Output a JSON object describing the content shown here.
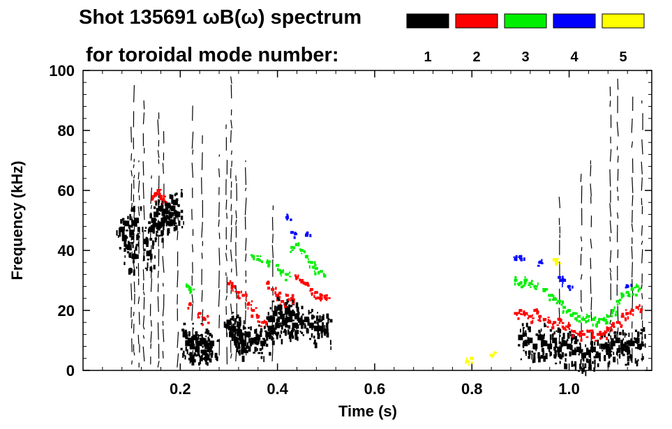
{
  "header": {
    "title_line1": "Shot 135691 ωB(ω) spectrum",
    "title_line2": "for toroidal mode number:"
  },
  "legend": [
    {
      "label": "1",
      "color": "#000000"
    },
    {
      "label": "2",
      "color": "#ff0000"
    },
    {
      "label": "3",
      "color": "#00ee00"
    },
    {
      "label": "4",
      "color": "#0000ff"
    },
    {
      "label": "5",
      "color": "#ffff00"
    }
  ],
  "chart_data": {
    "type": "scatter",
    "title": "Shot 135691 ωB(ω) spectrum for toroidal mode number",
    "xlabel": "Time (s)",
    "ylabel": "Frequency (kHz)",
    "xlim": [
      0.0,
      1.17
    ],
    "ylim": [
      0,
      100
    ],
    "xticks": [
      {
        "value": 0.2,
        "label": "0.2"
      },
      {
        "value": 0.4,
        "label": "0.4"
      },
      {
        "value": 0.6,
        "label": "0.6"
      },
      {
        "value": 0.8,
        "label": "0.8"
      },
      {
        "value": 1.0,
        "label": "1.0"
      }
    ],
    "yticks": [
      {
        "value": 0,
        "label": "0"
      },
      {
        "value": 20,
        "label": "20"
      },
      {
        "value": 40,
        "label": "40"
      },
      {
        "value": 60,
        "label": "60"
      },
      {
        "value": 80,
        "label": "80"
      },
      {
        "value": 100,
        "label": "100"
      }
    ],
    "series": [
      {
        "name": "n=1",
        "color": "#000000",
        "points": [
          [
            0.08,
            47
          ],
          [
            0.085,
            44
          ],
          [
            0.09,
            49
          ],
          [
            0.095,
            41
          ],
          [
            0.1,
            46
          ],
          [
            0.105,
            38
          ],
          [
            0.11,
            50
          ],
          [
            0.13,
            43
          ],
          [
            0.135,
            39
          ],
          [
            0.14,
            47
          ],
          [
            0.145,
            50
          ],
          [
            0.15,
            52
          ],
          [
            0.155,
            48
          ],
          [
            0.16,
            54
          ],
          [
            0.165,
            50
          ],
          [
            0.17,
            53
          ],
          [
            0.175,
            55
          ],
          [
            0.18,
            49
          ],
          [
            0.185,
            54
          ],
          [
            0.19,
            56
          ],
          [
            0.195,
            52
          ],
          [
            0.21,
            12
          ],
          [
            0.215,
            9
          ],
          [
            0.22,
            10
          ],
          [
            0.225,
            8
          ],
          [
            0.23,
            11
          ],
          [
            0.235,
            7
          ],
          [
            0.24,
            9
          ],
          [
            0.245,
            10
          ],
          [
            0.25,
            6
          ],
          [
            0.255,
            8
          ],
          [
            0.26,
            7
          ],
          [
            0.265,
            9
          ],
          [
            0.3,
            16
          ],
          [
            0.305,
            12
          ],
          [
            0.31,
            14
          ],
          [
            0.315,
            10
          ],
          [
            0.32,
            13
          ],
          [
            0.325,
            11
          ],
          [
            0.33,
            9
          ],
          [
            0.34,
            12
          ],
          [
            0.35,
            10
          ],
          [
            0.36,
            11
          ],
          [
            0.37,
            9
          ],
          [
            0.38,
            12
          ],
          [
            0.385,
            14
          ],
          [
            0.39,
            17
          ],
          [
            0.395,
            19
          ],
          [
            0.4,
            15
          ],
          [
            0.405,
            21
          ],
          [
            0.41,
            18
          ],
          [
            0.415,
            16
          ],
          [
            0.42,
            20
          ],
          [
            0.425,
            17
          ],
          [
            0.43,
            19
          ],
          [
            0.435,
            15
          ],
          [
            0.44,
            18
          ],
          [
            0.45,
            16
          ],
          [
            0.46,
            17
          ],
          [
            0.47,
            15
          ],
          [
            0.48,
            14
          ],
          [
            0.49,
            14
          ],
          [
            0.5,
            13
          ],
          [
            0.9,
            11
          ],
          [
            0.91,
            9
          ],
          [
            0.92,
            10
          ],
          [
            0.93,
            8
          ],
          [
            0.94,
            11
          ],
          [
            0.95,
            9
          ],
          [
            0.96,
            8
          ],
          [
            0.97,
            10
          ],
          [
            0.98,
            7
          ],
          [
            0.99,
            9
          ],
          [
            1.0,
            8
          ],
          [
            1.01,
            6
          ],
          [
            1.02,
            7
          ],
          [
            1.03,
            5
          ],
          [
            1.04,
            6
          ],
          [
            1.05,
            7
          ],
          [
            1.06,
            5
          ],
          [
            1.07,
            8
          ],
          [
            1.08,
            7
          ],
          [
            1.09,
            9
          ],
          [
            1.1,
            10
          ],
          [
            1.11,
            8
          ],
          [
            1.12,
            7
          ],
          [
            1.13,
            9
          ],
          [
            1.14,
            10
          ],
          [
            1.145,
            8
          ]
        ]
      },
      {
        "name": "n=2",
        "color": "#ff0000",
        "points": [
          [
            0.145,
            58
          ],
          [
            0.15,
            59
          ],
          [
            0.155,
            60
          ],
          [
            0.16,
            58
          ],
          [
            0.165,
            57
          ],
          [
            0.22,
            22
          ],
          [
            0.24,
            19
          ],
          [
            0.25,
            17
          ],
          [
            0.3,
            29
          ],
          [
            0.31,
            28
          ],
          [
            0.32,
            26
          ],
          [
            0.33,
            25
          ],
          [
            0.34,
            22
          ],
          [
            0.35,
            20
          ],
          [
            0.36,
            18
          ],
          [
            0.37,
            16
          ],
          [
            0.38,
            29
          ],
          [
            0.39,
            27
          ],
          [
            0.4,
            25
          ],
          [
            0.41,
            23
          ],
          [
            0.42,
            25
          ],
          [
            0.43,
            24
          ],
          [
            0.44,
            31
          ],
          [
            0.45,
            30
          ],
          [
            0.46,
            29
          ],
          [
            0.47,
            27
          ],
          [
            0.48,
            26
          ],
          [
            0.49,
            25
          ],
          [
            0.5,
            24
          ],
          [
            0.89,
            19
          ],
          [
            0.9,
            20
          ],
          [
            0.91,
            19
          ],
          [
            0.92,
            18
          ],
          [
            0.93,
            20
          ],
          [
            0.94,
            18
          ],
          [
            0.95,
            17
          ],
          [
            0.96,
            16
          ],
          [
            0.97,
            16
          ],
          [
            0.98,
            17
          ],
          [
            0.99,
            14
          ],
          [
            1.0,
            15
          ],
          [
            1.01,
            13
          ],
          [
            1.02,
            12
          ],
          [
            1.03,
            12
          ],
          [
            1.04,
            13
          ],
          [
            1.05,
            11
          ],
          [
            1.06,
            12
          ],
          [
            1.07,
            12
          ],
          [
            1.08,
            14
          ],
          [
            1.09,
            15
          ],
          [
            1.1,
            16
          ],
          [
            1.11,
            18
          ],
          [
            1.12,
            19
          ],
          [
            1.13,
            20
          ],
          [
            1.14,
            21
          ]
        ]
      },
      {
        "name": "n=3",
        "color": "#00ee00",
        "points": [
          [
            0.215,
            28
          ],
          [
            0.22,
            27
          ],
          [
            0.35,
            38
          ],
          [
            0.36,
            37
          ],
          [
            0.38,
            36
          ],
          [
            0.4,
            35
          ],
          [
            0.41,
            33
          ],
          [
            0.42,
            32
          ],
          [
            0.43,
            41
          ],
          [
            0.44,
            42
          ],
          [
            0.45,
            40
          ],
          [
            0.46,
            38
          ],
          [
            0.47,
            36
          ],
          [
            0.48,
            34
          ],
          [
            0.49,
            33
          ],
          [
            0.89,
            30
          ],
          [
            0.9,
            29
          ],
          [
            0.91,
            30
          ],
          [
            0.92,
            29
          ],
          [
            0.93,
            28
          ],
          [
            0.95,
            27
          ],
          [
            0.96,
            25
          ],
          [
            0.97,
            24
          ],
          [
            0.98,
            23
          ],
          [
            0.99,
            21
          ],
          [
            1.0,
            20
          ],
          [
            1.01,
            19
          ],
          [
            1.02,
            18
          ],
          [
            1.03,
            17
          ],
          [
            1.04,
            18
          ],
          [
            1.05,
            17
          ],
          [
            1.06,
            16
          ],
          [
            1.07,
            17
          ],
          [
            1.08,
            18
          ],
          [
            1.09,
            20
          ],
          [
            1.1,
            23
          ],
          [
            1.11,
            25
          ],
          [
            1.12,
            26
          ],
          [
            1.13,
            27
          ],
          [
            1.14,
            28
          ]
        ]
      },
      {
        "name": "n=4",
        "color": "#0000ff",
        "points": [
          [
            0.43,
            46
          ],
          [
            0.46,
            45
          ],
          [
            0.42,
            51
          ],
          [
            0.89,
            37
          ],
          [
            0.9,
            38
          ],
          [
            0.94,
            36
          ],
          [
            0.98,
            31
          ],
          [
            0.99,
            30
          ],
          [
            1.0,
            28
          ],
          [
            1.12,
            28
          ]
        ]
      },
      {
        "name": "n=5",
        "color": "#ffff00",
        "points": [
          [
            0.79,
            3
          ],
          [
            0.8,
            4
          ],
          [
            0.84,
            5
          ],
          [
            0.97,
            37
          ],
          [
            0.975,
            36
          ]
        ]
      }
    ],
    "legend_position": "top-right"
  }
}
